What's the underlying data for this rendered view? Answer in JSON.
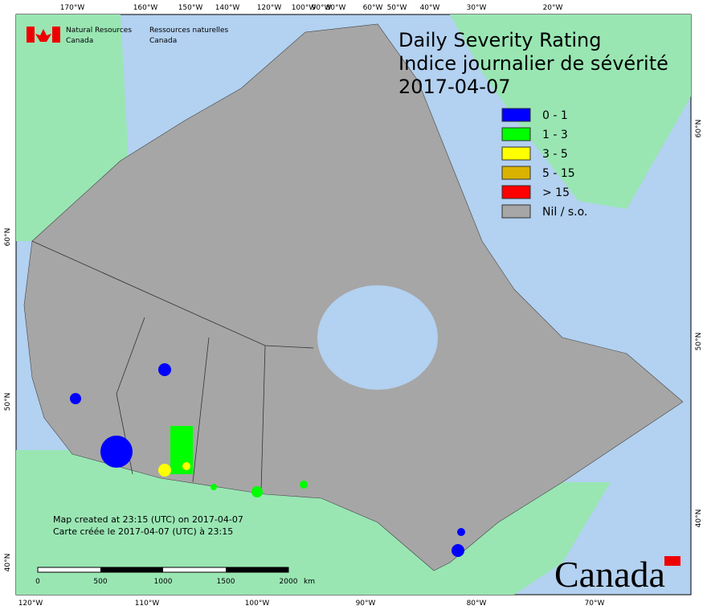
{
  "header": {
    "agency_en": [
      "Natural Resources",
      "Canada"
    ],
    "agency_fr": [
      "Ressources naturelles",
      "Canada"
    ]
  },
  "title": [
    "Daily Severity Rating",
    "Indice journalier de sévérité",
    "2017-04-07"
  ],
  "legend": [
    {
      "label": "0 - 1",
      "color": "#0000ff"
    },
    {
      "label": "1 - 3",
      "color": "#00ff00"
    },
    {
      "label": "3 - 5",
      "color": "#ffff00"
    },
    {
      "label": "5 - 15",
      "color": "#d9b300"
    },
    {
      "label": "> 15",
      "color": "#ff0000"
    },
    {
      "label": "Nil / s.o.",
      "color": "#a6a6a6"
    }
  ],
  "graticule": {
    "top": [
      "170°W",
      "160°W",
      "150°W",
      "140°W",
      "120°W",
      "100°W",
      "90°W",
      "80°W",
      "60°W",
      "50°W",
      "40°W",
      "30°W",
      "20°W"
    ],
    "bottom": [
      "120°W",
      "110°W",
      "100°W",
      "90°W",
      "80°W",
      "70°W"
    ],
    "left": [
      "60°N",
      "50°N",
      "40°N"
    ],
    "right": [
      "60°N",
      "50°N",
      "40°N"
    ]
  },
  "credits": [
    "Map created at 23:15 (UTC) on 2017-04-07",
    "Carte créée le 2017-04-07 (UTC) à 23:15"
  ],
  "scale": {
    "labels": [
      "0",
      "500",
      "1000",
      "1500",
      "2000"
    ],
    "unit": "km"
  },
  "wordmark": "Canada"
}
